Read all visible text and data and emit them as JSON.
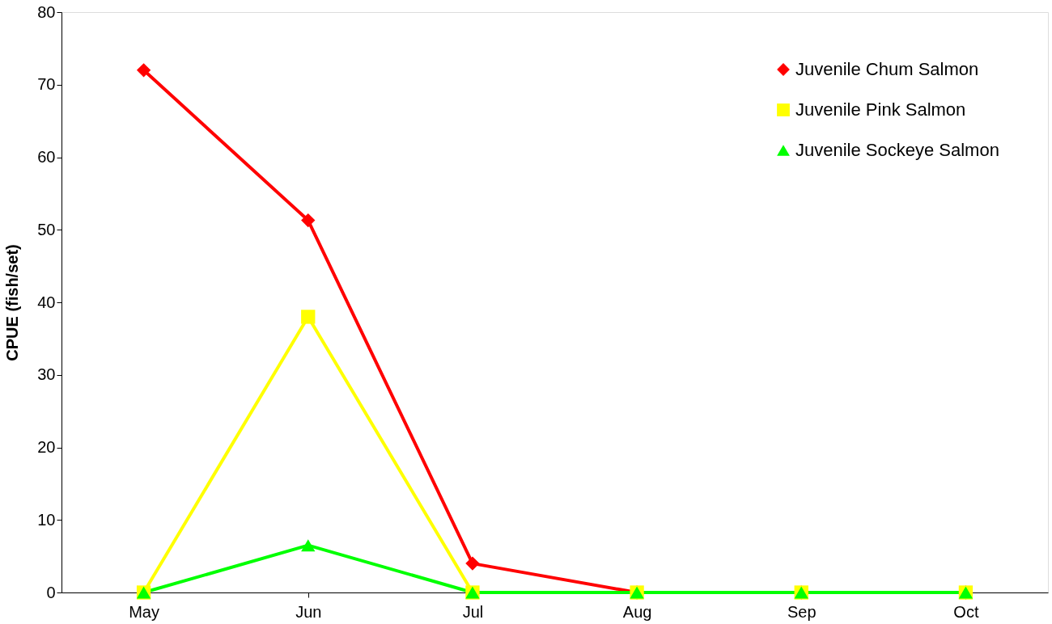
{
  "chart_data": {
    "type": "line",
    "ylabel": "CPUE (fish/set)",
    "categories": [
      "May",
      "Jun",
      "Jul",
      "Aug",
      "Sep",
      "Oct"
    ],
    "series": [
      {
        "name": "Juvenile Chum Salmon",
        "color": "#ff0000",
        "marker": "diamond",
        "values": [
          72,
          51.3,
          4,
          0,
          0,
          0
        ]
      },
      {
        "name": "Juvenile Pink Salmon",
        "color": "#ffff00",
        "marker": "square",
        "values": [
          0,
          38,
          0,
          0,
          0,
          0
        ]
      },
      {
        "name": "Juvenile Sockeye Salmon",
        "color": "#00ff00",
        "marker": "triangle",
        "values": [
          0,
          6.5,
          0,
          0,
          0,
          0
        ]
      }
    ],
    "ylim": [
      0,
      80
    ],
    "yticks": [
      0,
      10,
      20,
      30,
      40,
      50,
      60,
      70,
      80
    ],
    "grid": false,
    "legend": "top right",
    "line_style": "solid"
  }
}
